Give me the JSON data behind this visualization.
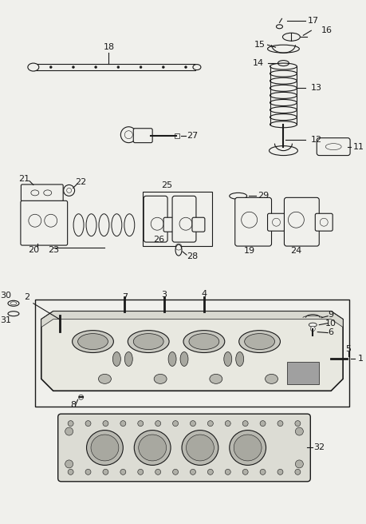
{
  "bg_color": "#f0f0ec",
  "lc": "#1a1a1a",
  "fig_w": 4.6,
  "fig_h": 6.56,
  "dpi": 100
}
